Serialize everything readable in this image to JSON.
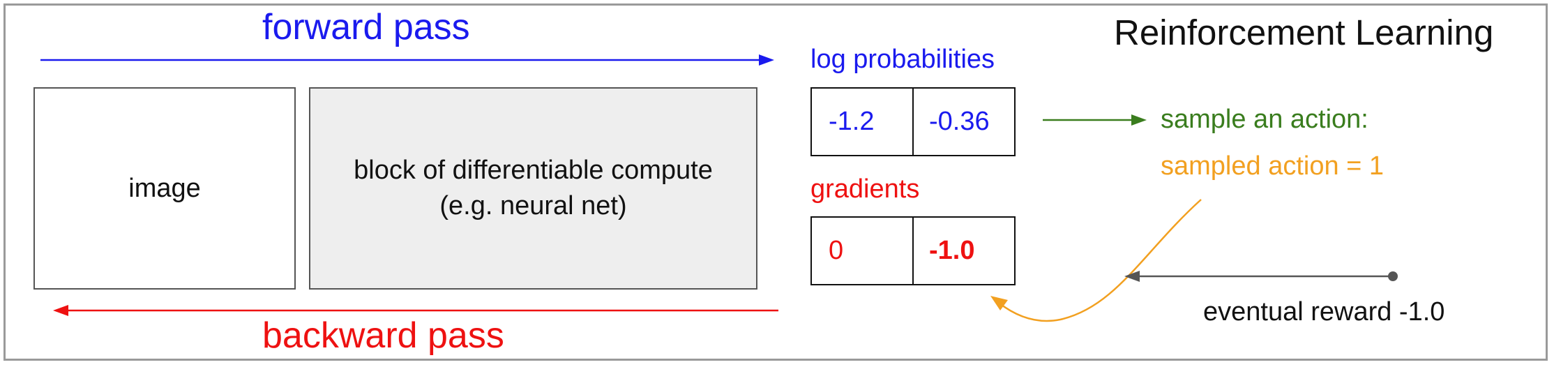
{
  "title": "Reinforcement Learning",
  "forward_pass": {
    "label": "forward pass",
    "color": "#1a1aee"
  },
  "backward_pass": {
    "label": "backward pass",
    "color": "#ee1111"
  },
  "blocks": {
    "image": "image",
    "compute_line1": "block of differentiable compute",
    "compute_line2": "(e.g. neural net)"
  },
  "log_probabilities": {
    "label": "log probabilities",
    "values": [
      "-1.2",
      "-0.36"
    ]
  },
  "gradients": {
    "label": "gradients",
    "values": [
      "0",
      "-1.0"
    ]
  },
  "sample": {
    "label": "sample an action:",
    "result": "sampled action = 1",
    "label_color": "#3a7d1e",
    "result_color": "#f2a020"
  },
  "reward": {
    "label": "eventual reward -1.0",
    "color": "#555555"
  }
}
